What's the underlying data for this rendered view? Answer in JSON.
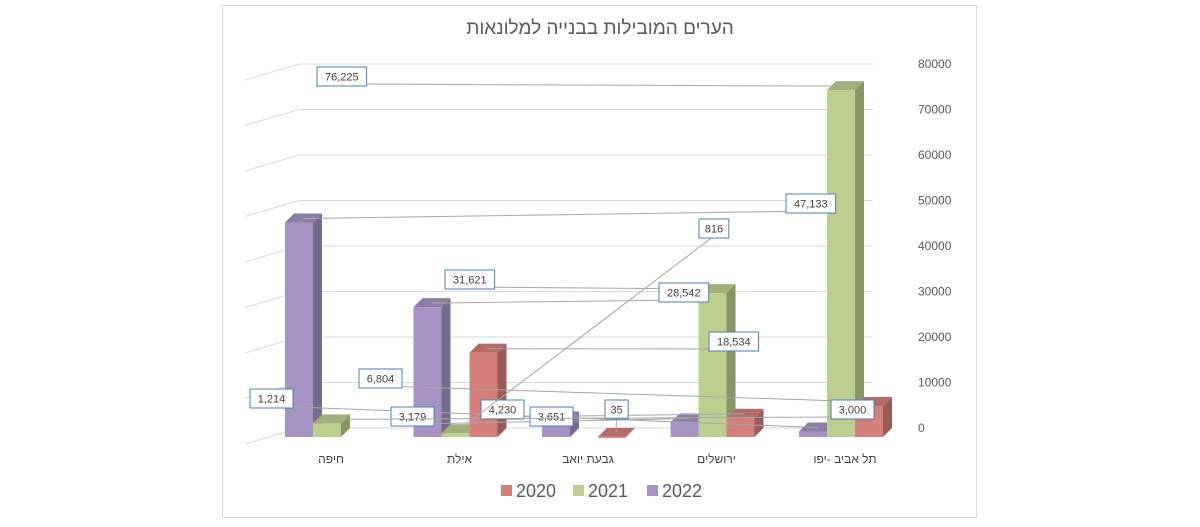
{
  "chart_data": {
    "type": "bar",
    "variant": "3d-clustered-column",
    "title": "הערים המובילות בבנייה למלונאות",
    "categories": [
      "תל אביב -יפו",
      "ירושלים",
      "גבעת יואב",
      "אילת",
      "חיפה"
    ],
    "series": [
      {
        "name": "2020",
        "color": "#d47f7b",
        "values": [
          6804,
          4230,
          35,
          18534,
          null
        ],
        "labels": [
          "6,804",
          "4,230",
          "35",
          "18,534",
          ""
        ]
      },
      {
        "name": "2021",
        "color": "#bccf8e",
        "values": [
          76225,
          31621,
          null,
          816,
          3000
        ],
        "labels": [
          "76,225",
          "31,621",
          "",
          "816",
          "3,000"
        ]
      },
      {
        "name": "2022",
        "color": "#a693c3",
        "values": [
          1214,
          3179,
          3651,
          28542,
          47133
        ],
        "labels": [
          "1,214",
          "3,179",
          "3,651",
          "28,542",
          "47,133"
        ]
      }
    ],
    "yticks": [
      "0",
      "10000",
      "20000",
      "30000",
      "40000",
      "50000",
      "60000",
      "70000",
      "80000"
    ],
    "ylim": [
      0,
      80000
    ],
    "axis_side": "right",
    "category_order": "right-to-left",
    "grid": true,
    "legend": {
      "position": "bottom",
      "order": [
        "2020",
        "2021",
        "2022"
      ]
    }
  }
}
